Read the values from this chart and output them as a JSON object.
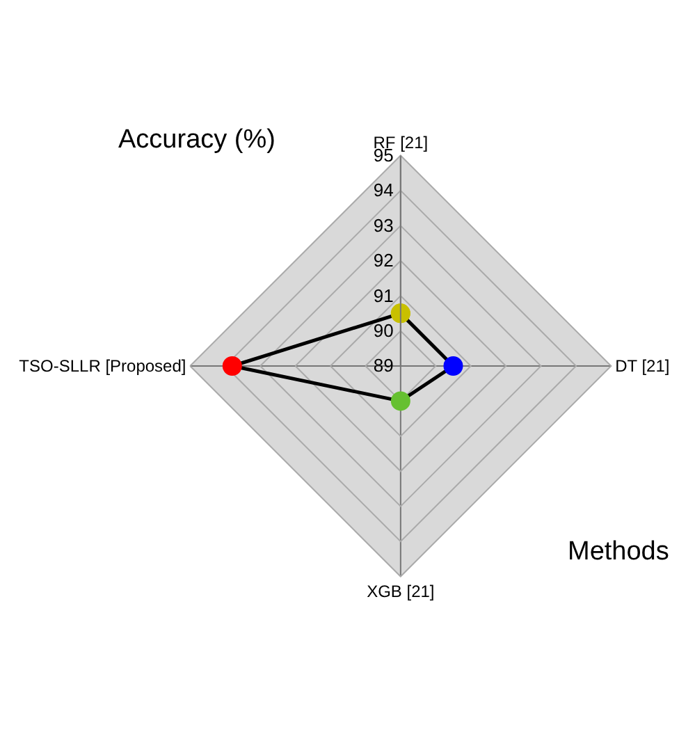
{
  "chart_data": {
    "type": "radar",
    "categories": [
      "RF [21]",
      "DT [21]",
      "XGB [21]",
      "TSO-SLLR [Proposed]"
    ],
    "series": [
      {
        "color": "#000000",
        "colors": [
          "#c8c000",
          "#0000ff",
          "#66c030",
          "#ff0000"
        ],
        "values": [
          90.5,
          90.5,
          90.0,
          93.8
        ]
      }
    ],
    "ylim": [
      89,
      95
    ],
    "yticks": [
      89,
      90,
      91,
      92,
      93,
      94,
      95
    ],
    "grid": true,
    "marker": "circle",
    "annotations": [
      "Accuracy (%)",
      "Methods"
    ]
  }
}
